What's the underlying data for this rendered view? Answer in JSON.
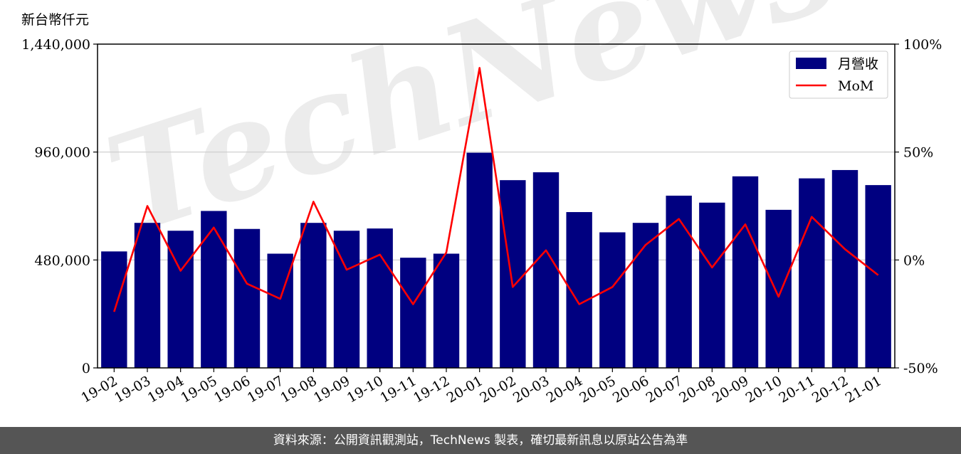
{
  "chart_data": {
    "type": "bar",
    "y_unit_label": "新台幣仟元",
    "categories": [
      "19-02",
      "19-03",
      "19-04",
      "19-05",
      "19-06",
      "19-07",
      "19-08",
      "19-09",
      "19-10",
      "19-11",
      "19-12",
      "20-01",
      "20-02",
      "20-03",
      "20-04",
      "20-05",
      "20-06",
      "20-07",
      "20-08",
      "20-09",
      "20-10",
      "20-11",
      "20-12",
      "21-01"
    ],
    "series": [
      {
        "name": "月營收",
        "axis": "left",
        "color": "#000080",
        "values": [
          518000,
          645000,
          610000,
          698000,
          618000,
          508000,
          645000,
          610000,
          620000,
          490000,
          508000,
          957000,
          835000,
          870000,
          693000,
          603000,
          645000,
          766000,
          735000,
          852000,
          703000,
          843000,
          880000,
          813000
        ]
      },
      {
        "name": "MoM",
        "axis": "right",
        "color": "#ff0000",
        "unit": "%",
        "values": [
          -24,
          25,
          -5,
          15,
          -11,
          -18,
          27,
          -4.5,
          2.5,
          -20.5,
          3.5,
          89,
          -12.5,
          4.5,
          -20.5,
          -12.5,
          7,
          19,
          -3.5,
          16.5,
          -17,
          20,
          5,
          -7
        ]
      }
    ],
    "y_left": {
      "min": 0,
      "max": 1440000,
      "ticks": [
        0,
        480000,
        960000,
        1440000
      ],
      "tick_labels": [
        "0",
        "480,000",
        "960,000",
        "1,440,000"
      ]
    },
    "y_right": {
      "min": -50,
      "max": 100,
      "ticks": [
        -50,
        0,
        50,
        100
      ],
      "tick_labels": [
        "-50%",
        "0%",
        "50%",
        "100%"
      ]
    },
    "grid": true,
    "legend_position": "top-right",
    "watermark": "TechNews"
  },
  "footer": {
    "text": "資料來源：公開資訊觀測站，TechNews 製表，確切最新訊息以原站公告為準"
  }
}
